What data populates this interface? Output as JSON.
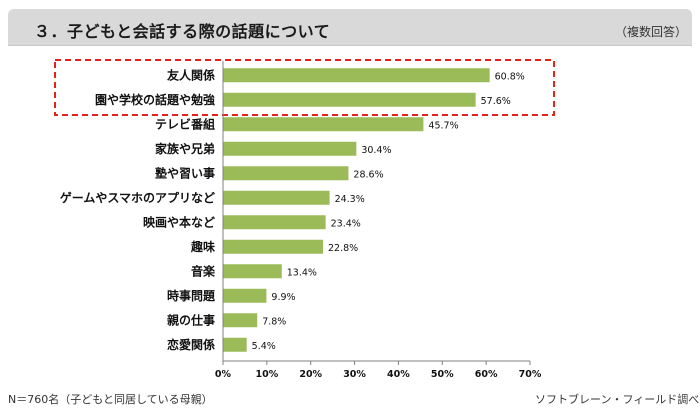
{
  "header": {
    "title": "３．子どもと会話する際の話題について",
    "note": "（複数回答）"
  },
  "footer": {
    "sample": "N＝760名（子どもと同居している母親）",
    "source": "ソフトブレーン・フィールド調べ"
  },
  "colors": {
    "bar": "#9bbb59",
    "highlight_border": "#e3231b",
    "title_bg": "#d9d9d9"
  },
  "chart_data": {
    "type": "bar",
    "orientation": "horizontal",
    "title": "",
    "xlabel": "",
    "ylabel": "",
    "xlim": [
      0,
      70
    ],
    "tick_values": [
      0,
      10,
      20,
      30,
      40,
      50,
      60,
      70
    ],
    "tick_labels": [
      "0%",
      "10%",
      "20%",
      "30%",
      "40%",
      "50%",
      "60%",
      "70%"
    ],
    "grid": false,
    "categories": [
      "友人関係",
      "園や学校の話題や勉強",
      "テレビ番組",
      "家族や兄弟",
      "塾や習い事",
      "ゲームやスマホのアプリなど",
      "映画や本など",
      "趣味",
      "音楽",
      "時事問題",
      "親の仕事",
      "恋愛関係"
    ],
    "values": [
      60.8,
      57.6,
      45.7,
      30.4,
      28.6,
      24.3,
      23.4,
      22.8,
      13.4,
      9.9,
      7.8,
      5.4
    ],
    "value_labels": [
      "60.8%",
      "57.6%",
      "45.7%",
      "30.4%",
      "28.6%",
      "24.3%",
      "23.4%",
      "22.8%",
      "13.4%",
      "9.9%",
      "7.8%",
      "5.4%"
    ],
    "highlighted_categories": [
      "友人関係",
      "園や学校の話題や勉強"
    ]
  }
}
